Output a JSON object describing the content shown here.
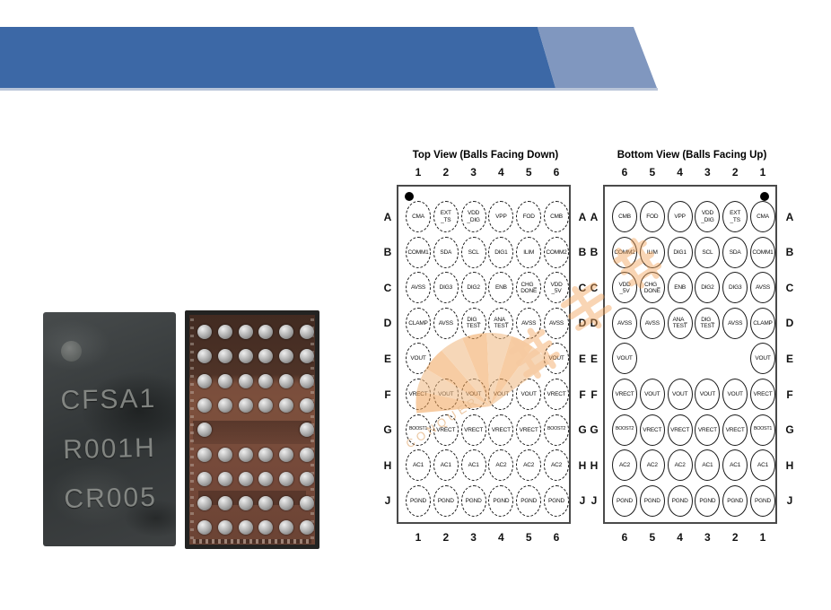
{
  "header": {
    "band_dark_color": "#3c68a6",
    "band_light_color": "#8097bf",
    "underline_color": "#b9c5d9"
  },
  "photos": {
    "chip_label_lines": [
      "CFSA1",
      "R001H",
      "CR005"
    ]
  },
  "watermark": {
    "text": "港记电子",
    "latin_text": "CONQUER",
    "color": "#f2a458"
  },
  "diagrams": {
    "top": {
      "title": "Top View (Balls Facing Down)",
      "col_labels": [
        "1",
        "2",
        "3",
        "4",
        "5",
        "6"
      ],
      "row_labels": [
        "A",
        "B",
        "C",
        "D",
        "E",
        "F",
        "G",
        "H",
        "J"
      ],
      "ball_style": "dashed",
      "pin1_corner": "top-left",
      "rows": [
        [
          "CMA",
          "EXT\n_TS",
          "VDD\n_DIG",
          "VPP",
          "FOD",
          "CMB"
        ],
        [
          "COMM1",
          "SDA",
          "SCL",
          "DIG1",
          "ILIM",
          "COMM2"
        ],
        [
          "AVSS",
          "DIG3",
          "DIG2",
          "ENB",
          "CHG_\nDONE",
          "VDD\n_5V"
        ],
        [
          "CLAMP",
          "AVSS",
          "DIG_\nTEST",
          "ANA_\nTEST",
          "AVSS",
          "AVSS"
        ],
        [
          "VOUT",
          null,
          null,
          null,
          null,
          "VOUT"
        ],
        [
          "VRECT",
          "VOUT",
          "VOUT",
          "VOUT",
          "VOUT",
          "VRECT"
        ],
        [
          "BOOST1",
          "VRECT",
          "VRECT",
          "VRECT",
          "VRECT",
          "BOOST2"
        ],
        [
          "AC1",
          "AC1",
          "AC1",
          "AC2",
          "AC2",
          "AC2"
        ],
        [
          "PGND",
          "PGND",
          "PGND",
          "PGND",
          "PGND",
          "PGND"
        ]
      ]
    },
    "bottom": {
      "title": "Bottom View (Balls Facing Up)",
      "col_labels": [
        "6",
        "5",
        "4",
        "3",
        "2",
        "1"
      ],
      "row_labels": [
        "A",
        "B",
        "C",
        "D",
        "E",
        "F",
        "G",
        "H",
        "J"
      ],
      "ball_style": "solid",
      "pin1_corner": "top-right",
      "rows": [
        [
          "CMB",
          "FOD",
          "VPP",
          "VDD\n_DIG",
          "EXT\n_TS",
          "CMA"
        ],
        [
          "COMM2",
          "ILIM",
          "DIG1",
          "SCL",
          "SDA",
          "COMM1"
        ],
        [
          "VDD\n_5V",
          "CHG_\nDONE",
          "ENB",
          "DIG2",
          "DIG3",
          "AVSS"
        ],
        [
          "AVSS",
          "AVSS",
          "ANA_\nTEST",
          "DIG_\nTEST",
          "AVSS",
          "CLAMP"
        ],
        [
          "VOUT",
          null,
          null,
          null,
          null,
          "VOUT"
        ],
        [
          "VRECT",
          "VOUT",
          "VOUT",
          "VOUT",
          "VOUT",
          "VRECT"
        ],
        [
          "BOOST2",
          "VRECT",
          "VRECT",
          "VRECT",
          "VRECT",
          "BOOST1"
        ],
        [
          "AC2",
          "AC2",
          "AC2",
          "AC1",
          "AC1",
          "AC1"
        ],
        [
          "PGND",
          "PGND",
          "PGND",
          "PGND",
          "PGND",
          "PGND"
        ]
      ]
    }
  }
}
